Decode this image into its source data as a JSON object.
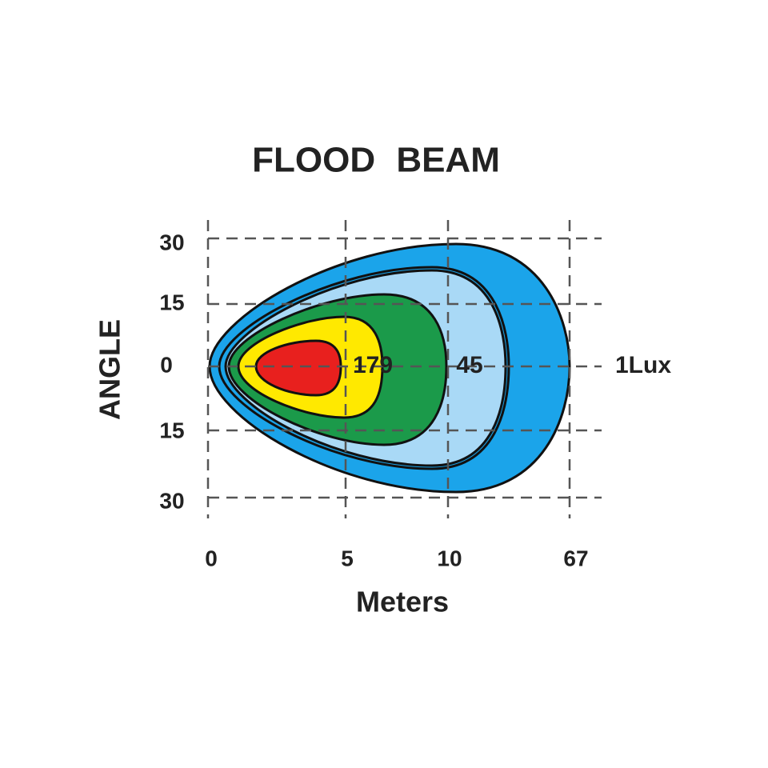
{
  "title": "FLOOD BEAM",
  "y_axis": {
    "label": "ANGLE",
    "ticks": [
      "30",
      "15",
      "0",
      "15",
      "30"
    ]
  },
  "x_axis": {
    "label": "Meters",
    "ticks": [
      "0",
      "5",
      "10",
      "67"
    ]
  },
  "contour_labels": [
    "179",
    "45",
    "1Lux"
  ]
}
